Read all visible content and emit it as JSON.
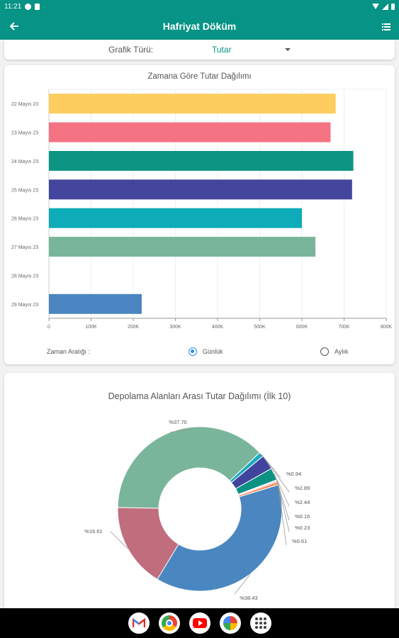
{
  "status_bar": {
    "time": "11:21"
  },
  "app_bar": {
    "title": "Hafriyat Döküm",
    "back_icon": "arrow-left-icon",
    "menu_icon": "list-menu-icon"
  },
  "chart_type": {
    "label": "Grafik Türü:",
    "value": "Tutar"
  },
  "bar_chart": {
    "title": "Zamana Göre Tutar Dağılımı",
    "range_label": "Zaman Aralığı :",
    "options": [
      {
        "label": "Günlük",
        "selected": true
      },
      {
        "label": "Aylık",
        "selected": false
      }
    ]
  },
  "pie_chart": {
    "title": "Depolama Alanları Arası Tutar Dağılımı (İlk 10)"
  },
  "chart_data": [
    {
      "type": "bar",
      "orientation": "horizontal",
      "title": "Zamana Göre Tutar Dağılımı",
      "categories": [
        "22 Mayıs 23",
        "23 Mayıs 23",
        "24 Mayıs 23",
        "25 Mayıs 23",
        "26 Mayıs 23",
        "27 Mayıs 23",
        "28 Mayıs 23",
        "29 Mayıs 23"
      ],
      "values": [
        680000,
        668000,
        722000,
        719000,
        600000,
        632000,
        0,
        220000
      ],
      "colors": [
        "#fdcd5f",
        "#f47383",
        "#0d9483",
        "#44459c",
        "#0eacb8",
        "#78b59a",
        "#cccccc",
        "#4a85c1"
      ],
      "xlim": [
        0,
        800000
      ],
      "xticks": [
        0,
        100000,
        200000,
        300000,
        400000,
        500000,
        600000,
        700000,
        800000
      ],
      "xtick_labels": [
        "0",
        "100K",
        "200K",
        "300K",
        "400K",
        "500K",
        "600K",
        "700K",
        "800K"
      ],
      "grid": true
    },
    {
      "type": "pie",
      "style": "donut",
      "title": "Depolama Alanları Arası Tutar Dağılımı (İlk 10)",
      "values": [
        37.7,
        0.94,
        2.89,
        2.44,
        0.16,
        0.23,
        0.61,
        38.43,
        16.61
      ],
      "labels": [
        "%37.70",
        "%0.94",
        "%2.89",
        "%2.44",
        "%0.16",
        "%0.23",
        "%0.61",
        "%38.43",
        "%16.61"
      ],
      "colors": [
        "#79b59b",
        "#1ea9bf",
        "#41449c",
        "#0b9283",
        "#fbc75a",
        "#f06c7b",
        "#fd8d5f",
        "#4a87c0",
        "#c06d7d"
      ]
    }
  ],
  "nav_bar": {
    "apps": [
      "gmail-icon",
      "chrome-icon",
      "youtube-icon",
      "photos-icon",
      "app-drawer-icon"
    ]
  }
}
